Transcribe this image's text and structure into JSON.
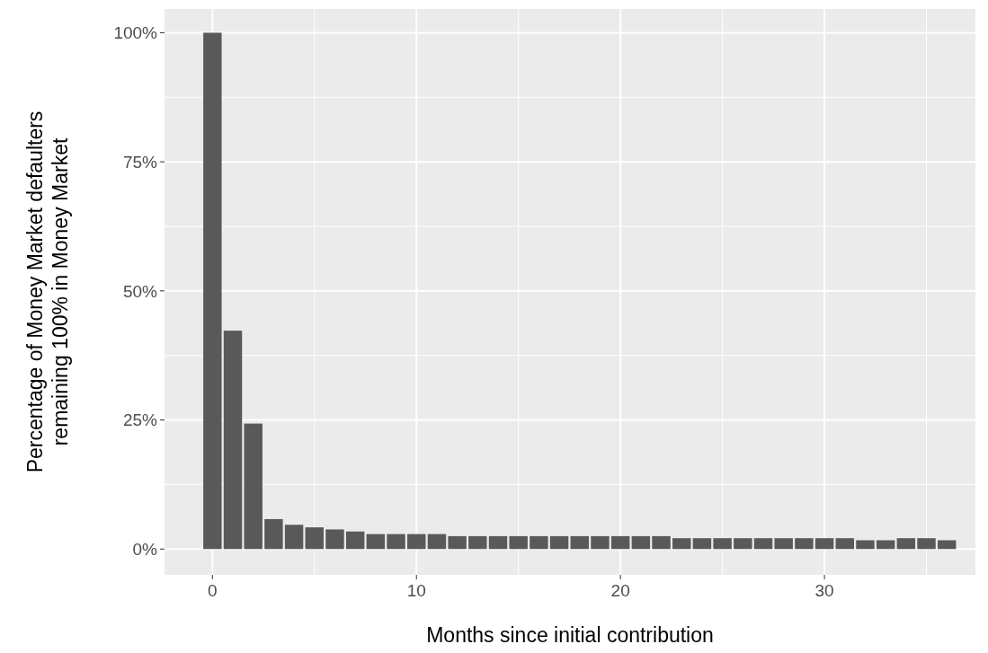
{
  "chart_data": {
    "type": "bar",
    "xlabel": "Months since initial contribution",
    "ylabel": "Percentage of Money Market defaulters\nremaining 100% in Money Market",
    "x": [
      0,
      1,
      2,
      3,
      4,
      5,
      6,
      7,
      8,
      9,
      10,
      11,
      12,
      13,
      14,
      15,
      16,
      17,
      18,
      19,
      20,
      21,
      22,
      23,
      24,
      25,
      26,
      27,
      28,
      29,
      30,
      31,
      32,
      33,
      34,
      35,
      36
    ],
    "values": [
      100,
      42.3,
      24.3,
      5.8,
      4.7,
      4.2,
      3.8,
      3.4,
      2.9,
      2.9,
      2.9,
      2.9,
      2.5,
      2.5,
      2.5,
      2.5,
      2.5,
      2.5,
      2.5,
      2.5,
      2.5,
      2.5,
      2.5,
      2.1,
      2.1,
      2.1,
      2.1,
      2.1,
      2.1,
      2.1,
      2.1,
      2.1,
      1.7,
      1.7,
      2.1,
      2.1,
      1.7
    ],
    "color": "#595959",
    "xlim": [
      -2.35,
      37.4
    ],
    "xticks": [
      0,
      10,
      20,
      30
    ],
    "ylim": [
      -5,
      104.6
    ],
    "yticks": [
      {
        "value": 0,
        "label": "0%"
      },
      {
        "value": 25,
        "label": "25%"
      },
      {
        "value": 50,
        "label": "50%"
      },
      {
        "value": 75,
        "label": "75%"
      },
      {
        "value": 100,
        "label": "100%"
      }
    ],
    "grid": true
  }
}
